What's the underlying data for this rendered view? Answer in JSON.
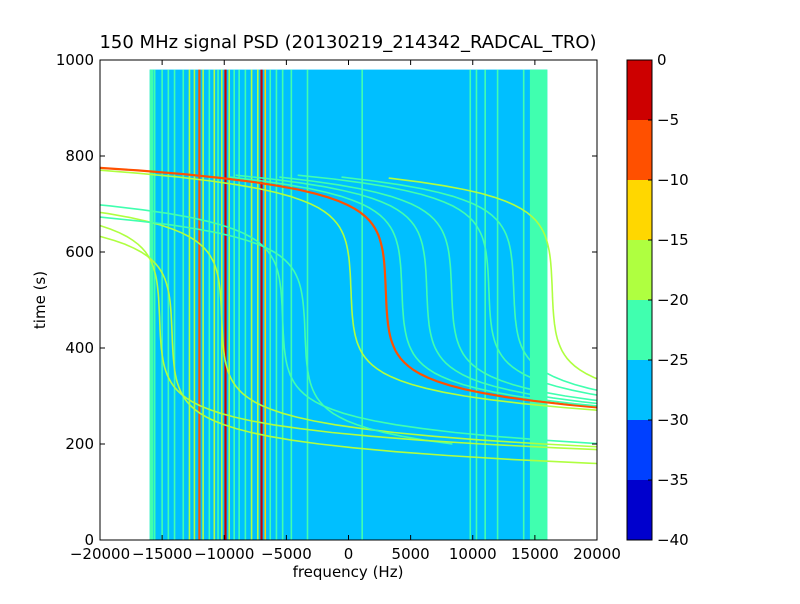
{
  "chart_data": {
    "type": "heatmap",
    "title": "150 MHz signal PSD (20130219_214342_RADCAL_TRO)",
    "xlabel": "frequency (Hz)",
    "ylabel": "time (s)",
    "xlim": [
      -20000,
      20000
    ],
    "ylim": [
      0,
      1000
    ],
    "data_extent_x": [
      -16000,
      16000
    ],
    "data_extent_y": [
      0,
      980
    ],
    "xticks": [
      -20000,
      -15000,
      -10000,
      -5000,
      0,
      5000,
      10000,
      15000,
      20000
    ],
    "xtick_labels": [
      "−20000",
      "−15000",
      "−10000",
      "−5000",
      "0",
      "5000",
      "10000",
      "15000",
      "20000"
    ],
    "yticks": [
      0,
      200,
      400,
      600,
      800,
      1000
    ],
    "ytick_labels": [
      "0",
      "200",
      "400",
      "600",
      "800",
      "1000"
    ],
    "background_level": -27.5,
    "colorbar": {
      "levels": [
        -40,
        -35,
        -30,
        -25,
        -20,
        -15,
        -10,
        -5,
        0
      ],
      "tick_labels": [
        "−40",
        "−35",
        "−30",
        "−25",
        "−20",
        "−15",
        "−10",
        "−5",
        "0"
      ],
      "colors": [
        "#0000cd",
        "#0040ff",
        "#00bfff",
        "#40ffaf",
        "#afff40",
        "#ffd700",
        "#ff5000",
        "#cd0000"
      ]
    },
    "bands": [
      {
        "x0": 14600,
        "x1": 16000,
        "level": -22.5
      },
      {
        "x0": -16000,
        "x1": -15700,
        "level": -22.5
      }
    ],
    "vertical_lines": [
      {
        "f": -15600,
        "level": -22.5
      },
      {
        "f": -15000,
        "level": -22.5
      },
      {
        "f": -14500,
        "level": -22.5
      },
      {
        "f": -14000,
        "level": -22.5
      },
      {
        "f": -13300,
        "level": -22.5
      },
      {
        "f": -12800,
        "level": -17.5
      },
      {
        "f": -12400,
        "level": -17.5
      },
      {
        "f": -12000,
        "level": -7.5
      },
      {
        "f": -11700,
        "level": -17.5
      },
      {
        "f": -11200,
        "level": -22.5
      },
      {
        "f": -10800,
        "level": -17.5
      },
      {
        "f": -10500,
        "level": -22.5
      },
      {
        "f": -10200,
        "level": -17.5
      },
      {
        "f": -9900,
        "level": -2.5
      },
      {
        "f": -9600,
        "level": -17.5
      },
      {
        "f": -9200,
        "level": -22.5
      },
      {
        "f": -8800,
        "level": -22.5
      },
      {
        "f": -8300,
        "level": -22.5
      },
      {
        "f": -7800,
        "level": -17.5
      },
      {
        "f": -7300,
        "level": -17.5
      },
      {
        "f": -7000,
        "level": -2.5
      },
      {
        "f": -6700,
        "level": -12.5
      },
      {
        "f": -6300,
        "level": -22.5
      },
      {
        "f": -5800,
        "level": -22.5
      },
      {
        "f": -5300,
        "level": -22.5
      },
      {
        "f": -4600,
        "level": -22.5
      },
      {
        "f": -3300,
        "level": -22.5
      },
      {
        "f": 1100,
        "level": -22.5
      },
      {
        "f": 9800,
        "level": -22.5
      },
      {
        "f": 10300,
        "level": -22.5
      },
      {
        "f": 11000,
        "level": -22.5
      },
      {
        "f": 12000,
        "level": -22.5
      },
      {
        "f": 14100,
        "level": -22.5
      }
    ],
    "drift_tracks": [
      {
        "center_f": -10200,
        "center_t": 460,
        "slope": 0.026,
        "t_range": [
          120,
          980
        ],
        "level": -17.5
      },
      {
        "center_f": -5300,
        "center_t": 460,
        "slope": 0.026,
        "t_range": [
          160,
          980
        ],
        "level": -22.5
      },
      {
        "center_f": -3500,
        "center_t": 430,
        "slope": 0.026,
        "t_range": [
          200,
          980
        ],
        "level": -22.5
      },
      {
        "center_f": 200,
        "center_t": 520,
        "slope": 0.026,
        "t_range": [
          260,
          880
        ],
        "level": -17.5
      },
      {
        "center_f": 3000,
        "center_t": 520,
        "slope": 0.026,
        "t_range": [
          210,
          880
        ],
        "level": -7.5
      },
      {
        "center_f": 4300,
        "center_t": 520,
        "slope": 0.026,
        "t_range": [
          220,
          760
        ],
        "level": -22.5
      },
      {
        "center_f": 6300,
        "center_t": 520,
        "slope": 0.026,
        "t_range": [
          200,
          760
        ],
        "level": -22.5
      },
      {
        "center_f": 8300,
        "center_t": 520,
        "slope": 0.026,
        "t_range": [
          180,
          760
        ],
        "level": -22.5
      },
      {
        "center_f": 11300,
        "center_t": 520,
        "slope": 0.026,
        "t_range": [
          200,
          760
        ],
        "level": -22.5
      },
      {
        "center_f": 13300,
        "center_t": 520,
        "slope": 0.026,
        "t_range": [
          260,
          760
        ],
        "level": -22.5
      },
      {
        "center_f": 16400,
        "center_t": 520,
        "slope": 0.026,
        "t_range": [
          330,
          760
        ],
        "level": -17.5
      },
      {
        "center_f": -15200,
        "center_t": 460,
        "slope": 0.026,
        "t_range": [
          120,
          980
        ],
        "level": -17.5
      },
      {
        "center_f": -14200,
        "center_t": 430,
        "slope": 0.026,
        "t_range": [
          120,
          980
        ],
        "level": -17.5
      }
    ]
  }
}
